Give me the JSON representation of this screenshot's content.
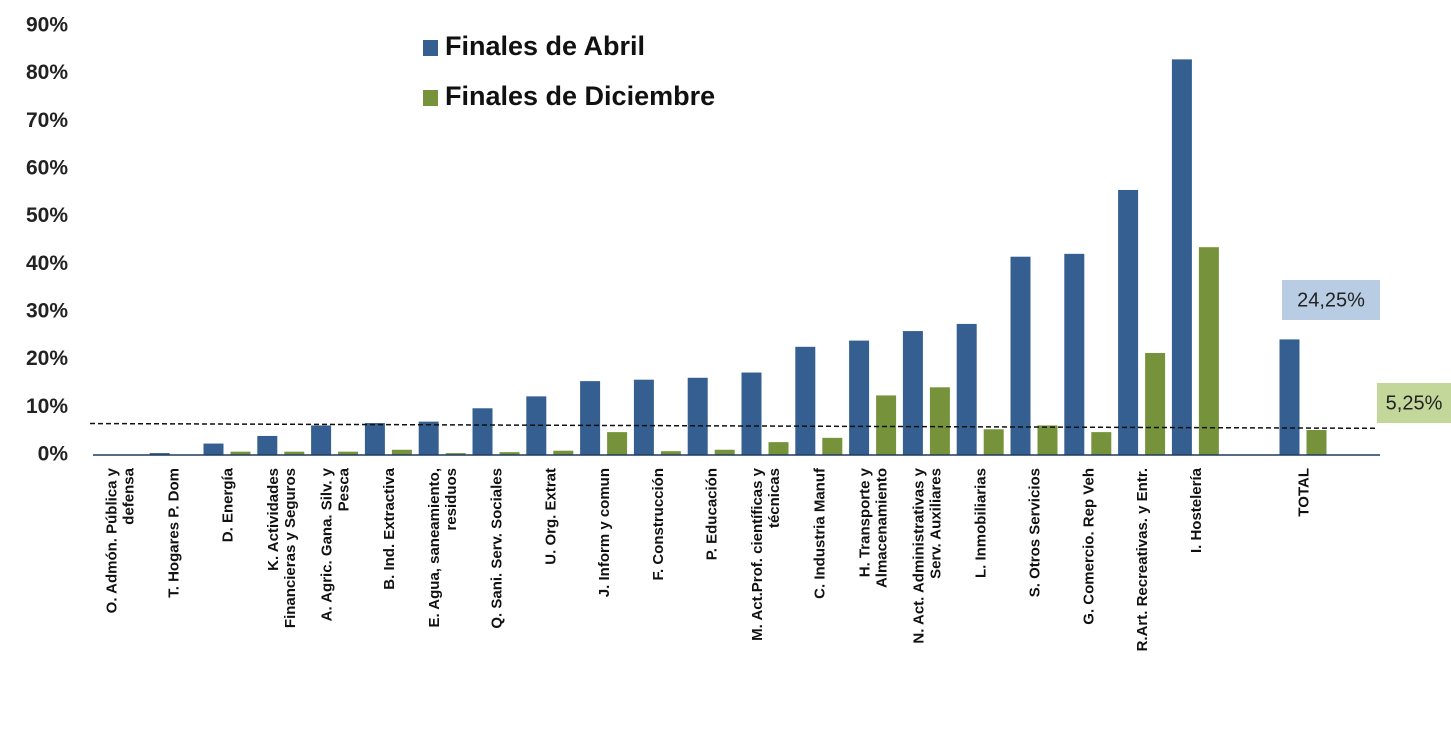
{
  "chart_data": {
    "type": "bar",
    "categories": [
      "O. Admón. Pública y\ndefensa",
      "T. Hogares P. Dom",
      "D. Energía",
      "K. Actividades\nFinancieras y  Seguros",
      "A. Agric. Gana. Silv. y\nPesca",
      "B. Ind. Extractiva",
      "E. Agua, saneamiento,\nresiduos",
      "Q. Sani. Serv. Sociales",
      "U. Org. Extrat",
      "J. Inform y comun",
      "F. Construcción",
      "P. Educación",
      "M. Act.Prof. científicas y\ntécnicas",
      "C. Industria Manuf",
      "H. Transporte y\nAlmacenamiento",
      "N. Act. Administrativas y\nServ. Auxiliares",
      "L. Inmobiliarias",
      "S. Otros Servicios",
      "G. Comercio. Rep Veh",
      "R.Art. Recreativas. y Entr.",
      "I. Hostelería",
      null,
      "TOTAL"
    ],
    "series": [
      {
        "name": "Finales de Abril",
        "color": "#355f91",
        "values": [
          0,
          0.4,
          2.4,
          4.0,
          6.2,
          6.7,
          7.0,
          9.8,
          12.3,
          15.5,
          15.8,
          16.2,
          17.3,
          22.7,
          24.0,
          26.0,
          27.5,
          41.6,
          42.2,
          55.6,
          83.0,
          null,
          24.25
        ],
        "value_labels": [
          null,
          null,
          null,
          null,
          null,
          null,
          null,
          null,
          null,
          null,
          null,
          null,
          null,
          null,
          null,
          null,
          null,
          null,
          null,
          null,
          null,
          null,
          "24,25%"
        ],
        "label_box": "#b8cce4"
      },
      {
        "name": "Finales de Diciembre",
        "color": "#76933c",
        "values": [
          0,
          0,
          0.7,
          0.7,
          0.7,
          1.1,
          0.4,
          0.6,
          0.9,
          4.8,
          0.8,
          1.1,
          2.7,
          3.6,
          12.5,
          14.2,
          5.4,
          6.2,
          4.8,
          21.4,
          43.6,
          null,
          5.25
        ],
        "value_labels": [
          null,
          null,
          null,
          null,
          null,
          null,
          null,
          null,
          null,
          null,
          null,
          null,
          null,
          null,
          null,
          null,
          null,
          null,
          null,
          null,
          null,
          null,
          "5,25%"
        ],
        "label_box": "#c4d79b"
      }
    ],
    "reference_line": [
      6.6,
      5.6
    ],
    "ylim": [
      0,
      90
    ],
    "yticks": [
      {
        "value": 0,
        "label": "0%"
      },
      {
        "value": 10,
        "label": "10%"
      },
      {
        "value": 20,
        "label": "20%"
      },
      {
        "value": 30,
        "label": "30%"
      },
      {
        "value": 40,
        "label": "40%"
      },
      {
        "value": 50,
        "label": "50%"
      },
      {
        "value": 60,
        "label": "60%"
      },
      {
        "value": 70,
        "label": "70%"
      },
      {
        "value": 80,
        "label": "80%"
      },
      {
        "value": 90,
        "label": "90%"
      }
    ],
    "grid": false
  }
}
